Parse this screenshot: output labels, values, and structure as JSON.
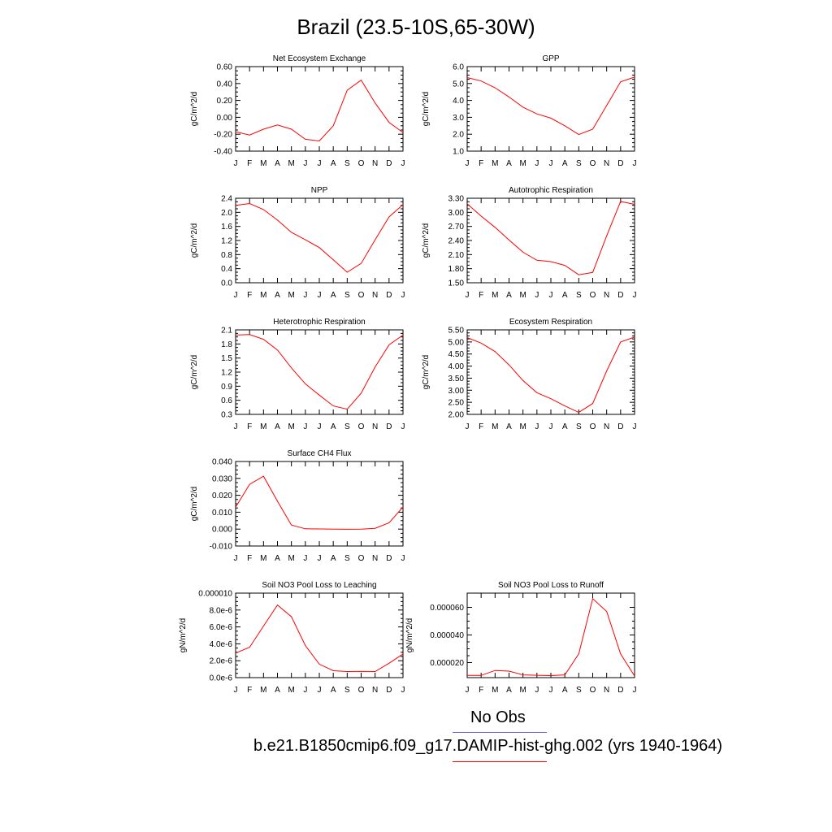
{
  "page": {
    "title": "Brazil (23.5-10S,65-30W)"
  },
  "legend": [
    {
      "label": "No Obs",
      "color": "#6b6bff"
    },
    {
      "label": "b.e21.B1850cmip6.f09_g17.DAMIP-hist-ghg.002 (yrs 1940-1964)",
      "color": "#ff0000"
    }
  ],
  "chart_data": [
    {
      "type": "line",
      "title": "Net Ecosystem Exchange",
      "xlabel": "",
      "ylabel": "gC/m^2/d",
      "categories": [
        "J",
        "F",
        "M",
        "A",
        "M",
        "J",
        "J",
        "A",
        "S",
        "O",
        "N",
        "D",
        "J"
      ],
      "ylim": [
        -0.4,
        0.6
      ],
      "yticks": [
        -0.4,
        -0.2,
        0.0,
        0.2,
        0.4,
        0.6
      ],
      "ytick_labels": [
        "-0.40",
        "-0.20",
        "0.00",
        "0.20",
        "0.40",
        "0.60"
      ],
      "series": [
        {
          "values": [
            -0.17,
            -0.21,
            -0.14,
            -0.09,
            -0.14,
            -0.26,
            -0.28,
            -0.1,
            0.32,
            0.44,
            0.17,
            -0.06,
            -0.18
          ],
          "color": "#ff0000"
        }
      ]
    },
    {
      "type": "line",
      "title": "GPP",
      "xlabel": "",
      "ylabel": "gC/m^2/d",
      "categories": [
        "J",
        "F",
        "M",
        "A",
        "M",
        "J",
        "J",
        "A",
        "S",
        "O",
        "N",
        "D",
        "J"
      ],
      "ylim": [
        1.0,
        6.0
      ],
      "yticks": [
        1,
        2,
        3,
        4,
        5,
        6
      ],
      "ytick_labels": [
        "1.0",
        "2.0",
        "3.0",
        "4.0",
        "5.0",
        "6.0"
      ],
      "series": [
        {
          "values": [
            5.35,
            5.15,
            4.75,
            4.2,
            3.6,
            3.2,
            2.95,
            2.5,
            1.98,
            2.3,
            3.7,
            5.1,
            5.38
          ],
          "color": "#ff0000"
        }
      ]
    },
    {
      "type": "line",
      "title": "NPP",
      "xlabel": "",
      "ylabel": "gC/m^2/d",
      "categories": [
        "J",
        "F",
        "M",
        "A",
        "M",
        "J",
        "J",
        "A",
        "S",
        "O",
        "N",
        "D",
        "J"
      ],
      "ylim": [
        0.0,
        2.4
      ],
      "yticks": [
        0,
        0.4,
        0.8,
        1.2,
        1.6,
        2.0,
        2.4
      ],
      "ytick_labels": [
        "0.0",
        "0.4",
        "0.8",
        "1.2",
        "1.6",
        "2.0",
        "2.4"
      ],
      "series": [
        {
          "values": [
            2.2,
            2.25,
            2.08,
            1.78,
            1.43,
            1.22,
            1.0,
            0.65,
            0.3,
            0.55,
            1.22,
            1.87,
            2.22
          ],
          "color": "#ff0000"
        }
      ]
    },
    {
      "type": "line",
      "title": "Autotrophic Respiration",
      "xlabel": "",
      "ylabel": "gC/m^2/d",
      "categories": [
        "J",
        "F",
        "M",
        "A",
        "M",
        "J",
        "J",
        "A",
        "S",
        "O",
        "N",
        "D",
        "J"
      ],
      "ylim": [
        1.5,
        3.3
      ],
      "yticks": [
        1.5,
        1.8,
        2.1,
        2.4,
        2.7,
        3.0,
        3.3
      ],
      "ytick_labels": [
        "1.50",
        "1.80",
        "2.10",
        "2.40",
        "2.70",
        "3.00",
        "3.30"
      ],
      "series": [
        {
          "values": [
            3.18,
            2.92,
            2.68,
            2.41,
            2.15,
            1.98,
            1.95,
            1.87,
            1.67,
            1.72,
            2.5,
            3.23,
            3.17
          ],
          "color": "#ff0000"
        }
      ]
    },
    {
      "type": "line",
      "title": "Heterotrophic Respiration",
      "xlabel": "",
      "ylabel": "gC/m^2/d",
      "categories": [
        "J",
        "F",
        "M",
        "A",
        "M",
        "J",
        "J",
        "A",
        "S",
        "O",
        "N",
        "D",
        "J"
      ],
      "ylim": [
        0.3,
        2.1
      ],
      "yticks": [
        0.3,
        0.6,
        0.9,
        1.2,
        1.5,
        1.8,
        2.1
      ],
      "ytick_labels": [
        "0.3",
        "0.6",
        "0.9",
        "1.2",
        "1.5",
        "1.8",
        "2.1"
      ],
      "series": [
        {
          "values": [
            1.99,
            2.0,
            1.9,
            1.67,
            1.29,
            0.95,
            0.71,
            0.48,
            0.41,
            0.75,
            1.31,
            1.78,
            1.99
          ],
          "color": "#ff0000"
        }
      ]
    },
    {
      "type": "line",
      "title": "Ecosystem Respiration",
      "xlabel": "",
      "ylabel": "gC/m^2/d",
      "categories": [
        "J",
        "F",
        "M",
        "A",
        "M",
        "J",
        "J",
        "A",
        "S",
        "O",
        "N",
        "D",
        "J"
      ],
      "ylim": [
        2.0,
        5.5
      ],
      "yticks": [
        2.0,
        2.5,
        3.0,
        3.5,
        4.0,
        4.5,
        5.0,
        5.5
      ],
      "ytick_labels": [
        "2.00",
        "2.50",
        "3.00",
        "3.50",
        "4.00",
        "4.50",
        "5.00",
        "5.50"
      ],
      "series": [
        {
          "values": [
            5.18,
            4.95,
            4.6,
            4.05,
            3.4,
            2.9,
            2.65,
            2.35,
            2.08,
            2.45,
            3.8,
            5.0,
            5.2
          ],
          "color": "#ff0000"
        }
      ]
    },
    {
      "type": "line",
      "title": "Surface CH4 Flux",
      "xlabel": "",
      "ylabel": "gC/m^2/d",
      "categories": [
        "J",
        "F",
        "M",
        "A",
        "M",
        "J",
        "J",
        "A",
        "S",
        "O",
        "N",
        "D",
        "J"
      ],
      "ylim": [
        -0.01,
        0.04
      ],
      "yticks": [
        -0.01,
        0.0,
        0.01,
        0.02,
        0.03,
        0.04
      ],
      "ytick_labels": [
        "-0.010",
        "0.000",
        "0.010",
        "0.020",
        "0.030",
        "0.040"
      ],
      "series": [
        {
          "values": [
            0.013,
            0.0265,
            0.0313,
            0.0165,
            0.0024,
            0.0002,
            0.0001,
            0.0,
            -0.0001,
            0.0,
            0.0005,
            0.0037,
            0.0131
          ],
          "color": "#ff0000"
        }
      ]
    },
    {
      "type": "line",
      "title": "Soil NO3 Pool Loss to Leaching",
      "xlabel": "",
      "ylabel": "gN/m^2/d",
      "categories": [
        "J",
        "F",
        "M",
        "A",
        "M",
        "J",
        "J",
        "A",
        "S",
        "O",
        "N",
        "D",
        "J"
      ],
      "ylim": [
        0,
        1e-05
      ],
      "yticks": [
        0,
        2e-06,
        4e-06,
        6e-06,
        8e-06,
        1e-05
      ],
      "ytick_labels": [
        "0.0e-6",
        "2.0e-6",
        "4.0e-6",
        "6.0e-6",
        "8.0e-6",
        "0.000010"
      ],
      "series": [
        {
          "values": [
            2.9e-06,
            3.6e-06,
            6.1e-06,
            8.6e-06,
            7.2e-06,
            3.8e-06,
            1.6e-06,
            8.2e-07,
            7.2e-07,
            7.5e-07,
            7.2e-07,
            1.7e-06,
            2.8e-06
          ],
          "color": "#ff0000"
        }
      ]
    },
    {
      "type": "line",
      "title": "Soil NO3 Pool Loss to Runoff",
      "xlabel": "",
      "ylabel": "gN/m^2/d",
      "categories": [
        "J",
        "F",
        "M",
        "A",
        "M",
        "J",
        "J",
        "A",
        "S",
        "O",
        "N",
        "D",
        "J"
      ],
      "ylim": [
        9.1e-06,
        7.03e-05
      ],
      "yticks": [
        2e-05,
        4e-05,
        6e-05
      ],
      "ytick_labels": [
        "0.000020",
        "0.000040",
        "0.000060"
      ],
      "series": [
        {
          "values": [
            1.07e-05,
            1.07e-05,
            1.43e-05,
            1.38e-05,
            1.11e-05,
            1.08e-05,
            1.06e-05,
            1.11e-05,
            2.63e-05,
            6.63e-05,
            5.7e-05,
            2.63e-05,
            1.03e-05
          ],
          "color": "#ff0000"
        }
      ]
    }
  ]
}
